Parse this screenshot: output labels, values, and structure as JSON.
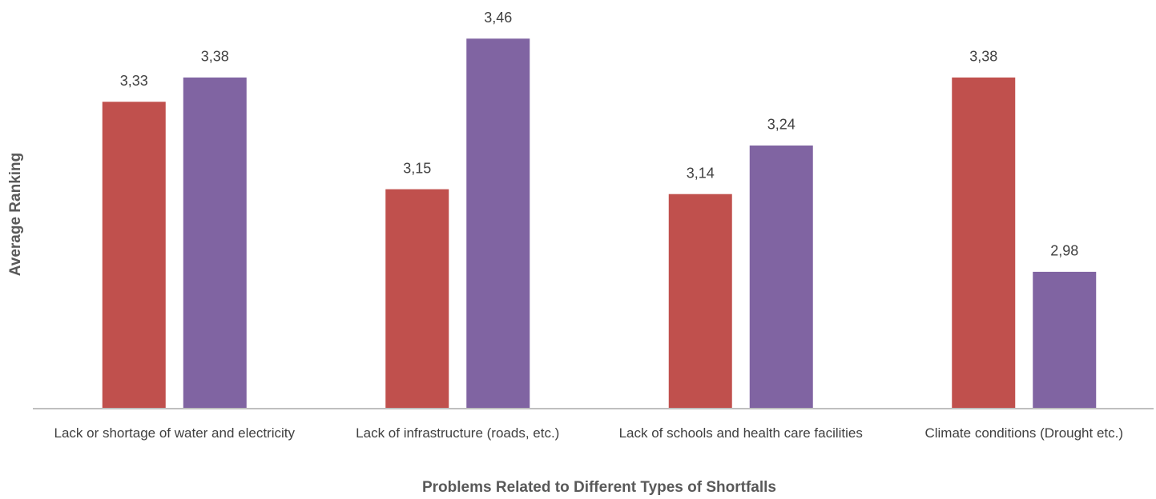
{
  "chart_data": {
    "type": "bar",
    "x_label": "Problems Related to Different Types of Shortfalls",
    "y_label": "Average Ranking",
    "categories": [
      "Lack or shortage of water and electricity",
      "Lack of infrastructure (roads, etc.)",
      "Lack of schools and health care facilities",
      "Climate conditions (Drought etc.)"
    ],
    "series": [
      {
        "color": "#c0504d",
        "values": [
          3.33,
          3.15,
          3.14,
          3.38
        ],
        "value_labels": [
          "3,33",
          "3,15",
          "3,14",
          "3,38"
        ]
      },
      {
        "color": "#8064a2",
        "values": [
          3.38,
          3.46,
          3.24,
          2.98
        ],
        "value_labels": [
          "3,38",
          "3,46",
          "3,24",
          "2,98"
        ]
      }
    ],
    "ylim": [
      2.7,
      3.5
    ]
  }
}
